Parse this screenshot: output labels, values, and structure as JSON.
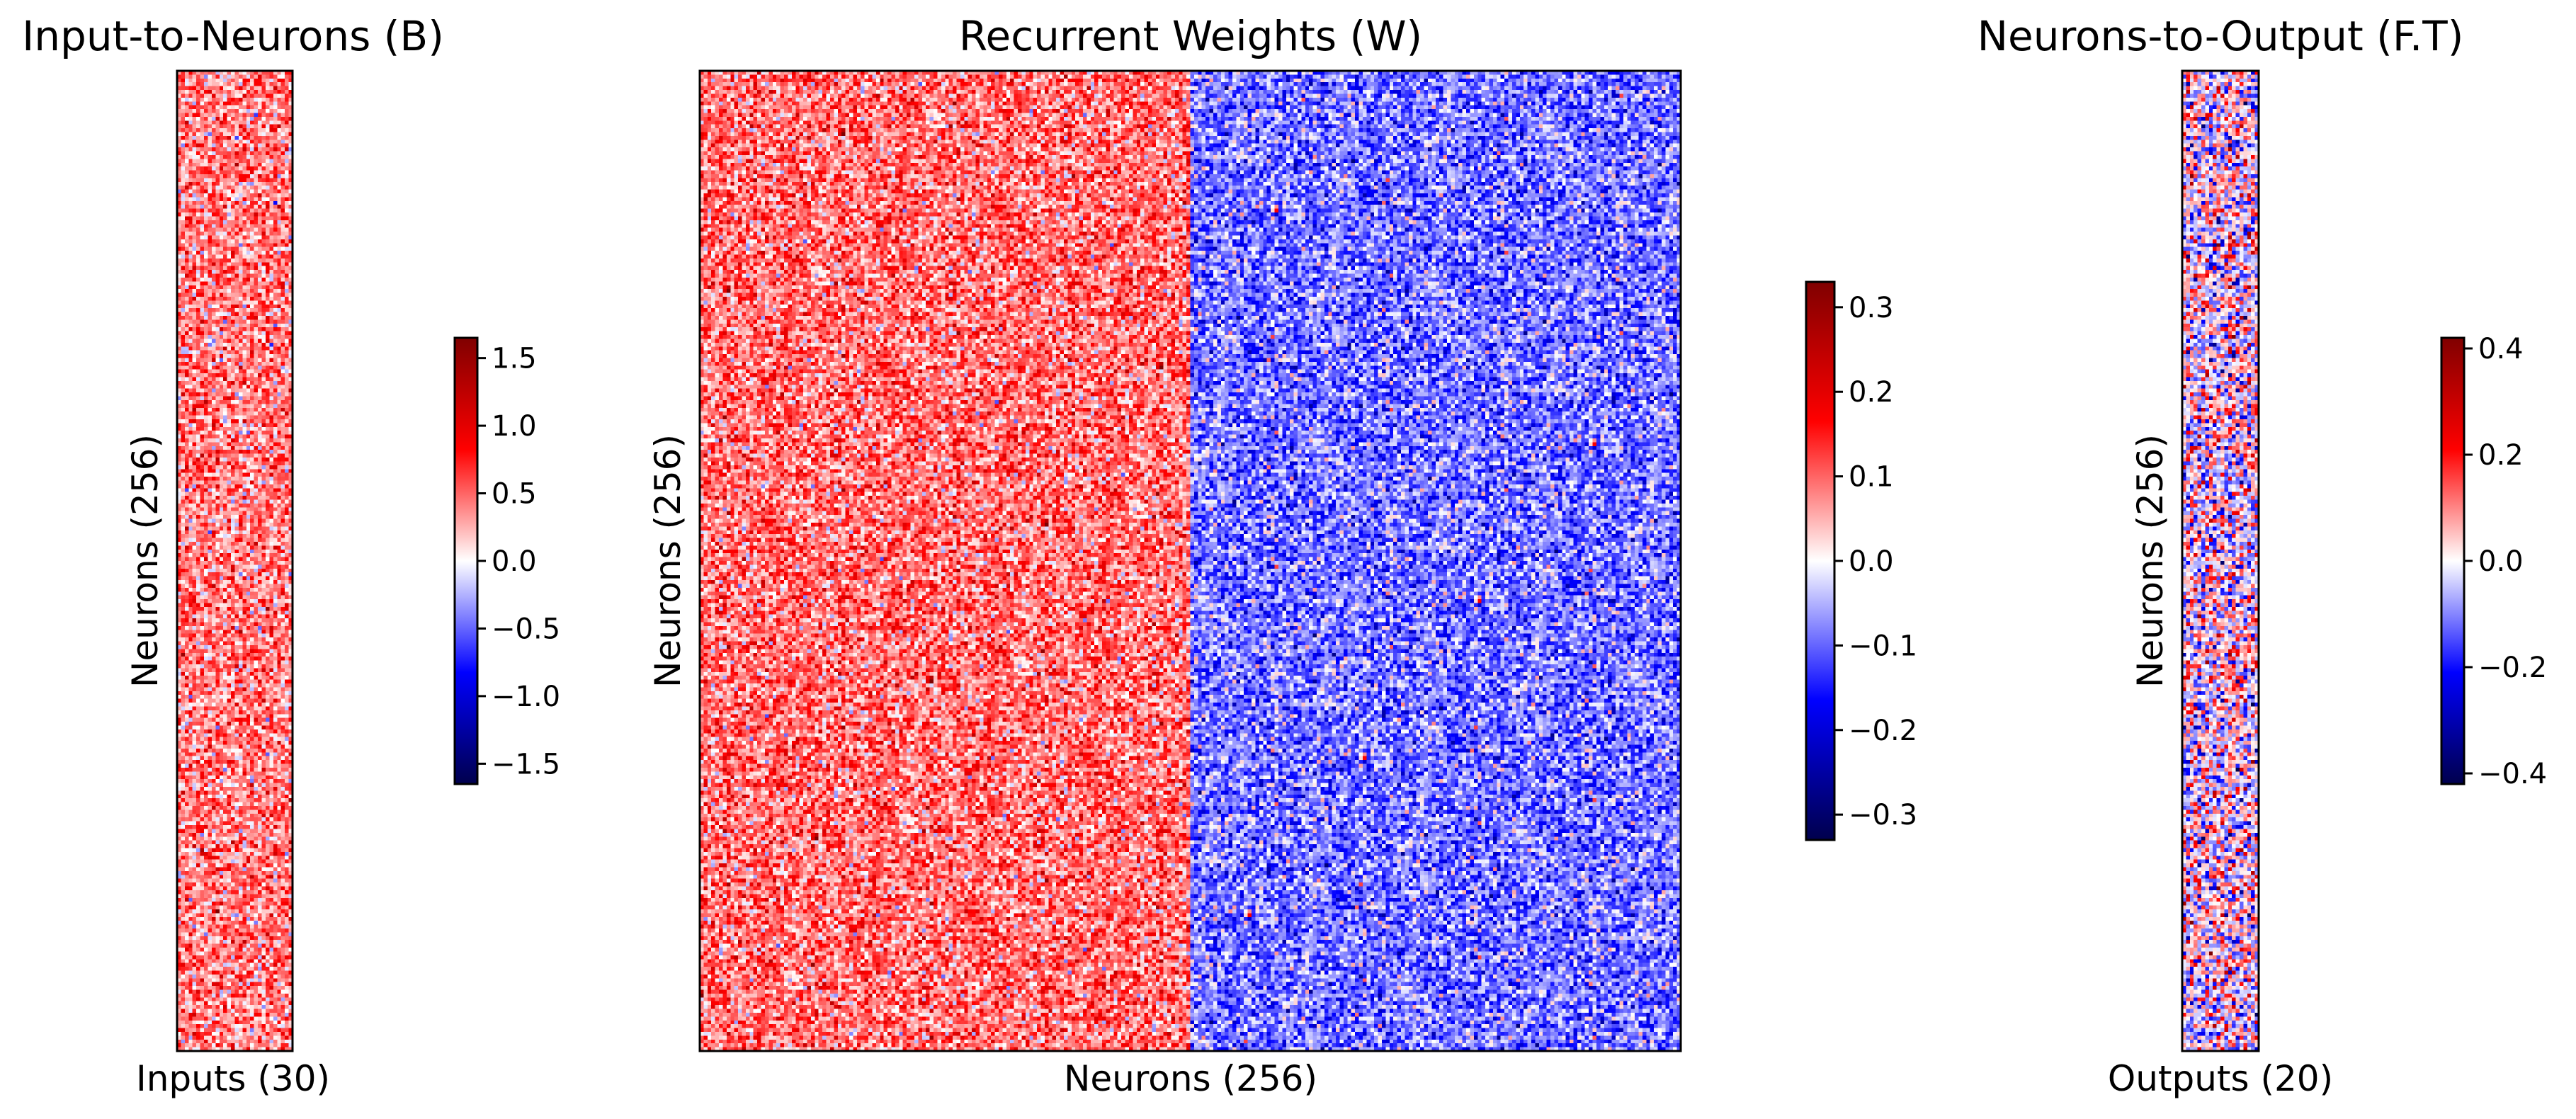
{
  "chart_data": [
    {
      "type": "heatmap",
      "title": "Input-to-Neurons (B)",
      "xlabel": "Inputs (30)",
      "ylabel": "Neurons (256)",
      "rows": 256,
      "cols": 30,
      "value_description": "mostly positive weights, mean about 0.4, spread about 0.3",
      "value_mean": 0.4,
      "value_spread": 0.3,
      "colormap": "seismic",
      "colorbar": {
        "min": -1.65,
        "max": 1.65,
        "ticks": [
          1.5,
          1.0,
          0.5,
          0.0,
          -0.5,
          -1.0,
          -1.5
        ],
        "tick_labels": [
          "1.5",
          "1.0",
          "0.5",
          "0.0",
          "−0.5",
          "−1.0",
          "−1.5"
        ]
      }
    },
    {
      "type": "heatmap",
      "title": "Recurrent Weights (W)",
      "xlabel": "Neurons (256)",
      "ylabel": "Neurons (256)",
      "rows": 256,
      "cols": 256,
      "value_description": "left half (columns 0-127) positive, right half (columns 128-255) negative",
      "blocks": [
        {
          "name": "excitatory",
          "col_start": 0,
          "col_end": 127,
          "value_mean": 0.09,
          "value_spread": 0.06
        },
        {
          "name": "inhibitory",
          "col_start": 128,
          "col_end": 255,
          "value_mean": -0.09,
          "value_spread": 0.06
        }
      ],
      "colormap": "seismic",
      "colorbar": {
        "min": -0.33,
        "max": 0.33,
        "ticks": [
          0.3,
          0.2,
          0.1,
          0.0,
          -0.1,
          -0.2,
          -0.3
        ],
        "tick_labels": [
          "0.3",
          "0.2",
          "0.1",
          "0.0",
          "−0.1",
          "−0.2",
          "−0.3"
        ]
      }
    },
    {
      "type": "heatmap",
      "title": "Neurons-to-Output (F.T)",
      "xlabel": "Outputs (20)",
      "ylabel": "Neurons (256)",
      "rows": 256,
      "cols": 20,
      "value_description": "mixed sign weights centred on zero",
      "value_mean": 0.0,
      "value_spread": 0.13,
      "colormap": "seismic",
      "colorbar": {
        "min": -0.42,
        "max": 0.42,
        "ticks": [
          0.4,
          0.2,
          0.0,
          -0.2,
          -0.4
        ],
        "tick_labels": [
          "0.4",
          "0.2",
          "0.0",
          "−0.2",
          "−0.4"
        ]
      }
    }
  ]
}
